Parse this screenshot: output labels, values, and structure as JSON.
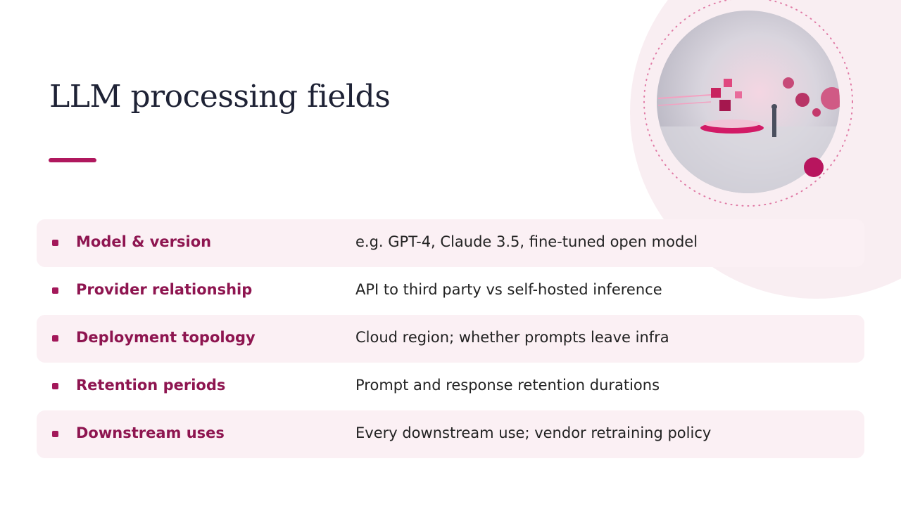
{
  "title": "LLM processing fields",
  "rows": [
    {
      "label": "Model & version",
      "value": "e.g. GPT-4, Claude 3.5, fine-tuned open model"
    },
    {
      "label": "Provider relationship",
      "value": "API to third party vs self-hosted inference"
    },
    {
      "label": "Deployment topology",
      "value": "Cloud region; whether prompts leave infra"
    },
    {
      "label": "Retention periods",
      "value": "Prompt and response retention durations"
    },
    {
      "label": "Downstream uses",
      "value": "Every downstream use; vendor retraining policy"
    }
  ]
}
